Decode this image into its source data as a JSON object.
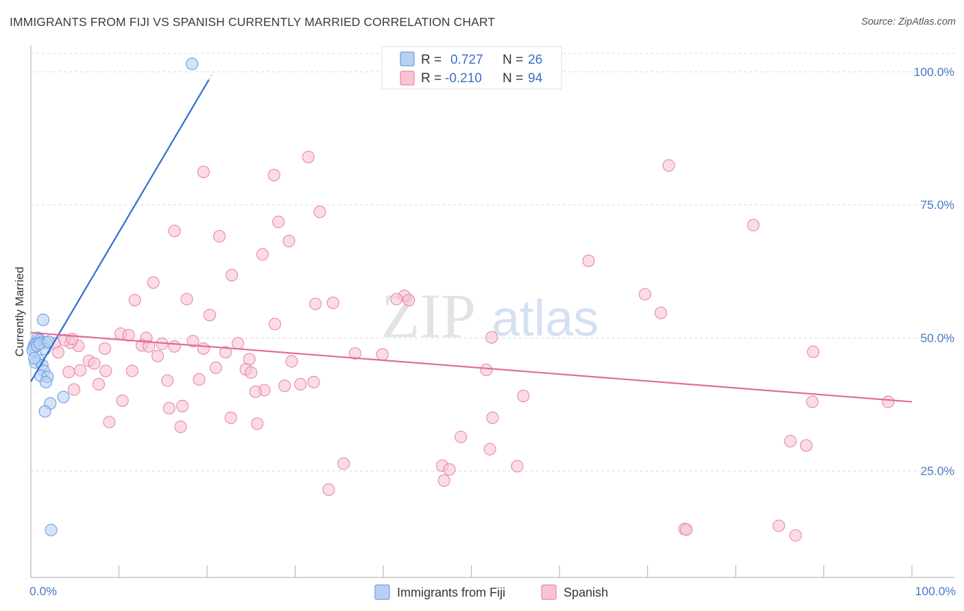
{
  "header": {
    "title": "IMMIGRANTS FROM FIJI VS SPANISH CURRENTLY MARRIED CORRELATION CHART",
    "source": "Source: ZipAtlas.com"
  },
  "watermark": {
    "zip": "ZIP",
    "atlas": "atlas"
  },
  "stats": {
    "r_label": "R =",
    "n_label": "N =",
    "rows": [
      {
        "r": "0.727",
        "n": "26"
      },
      {
        "r": "-0.210",
        "n": "94"
      }
    ]
  },
  "legend": {
    "fiji": "Immigrants from Fiji",
    "spanish": "Spanish"
  },
  "colors": {
    "fiji_fill": "#b7d0f3",
    "fiji_stroke": "#6c9ee0",
    "fiji_line": "#2c6fd0",
    "spanish_fill": "#f8c4d5",
    "spanish_stroke": "#e8889f",
    "spanish_line": "#e06c97"
  },
  "chart_data": {
    "type": "scatter",
    "title": "IMMIGRANTS FROM FIJI VS SPANISH CURRENTLY MARRIED CORRELATION CHART",
    "ylabel": "Currently Married",
    "xlabel": "",
    "xlim": [
      0,
      100
    ],
    "ylim": [
      5,
      105
    ],
    "x_tick_labels": [
      "0.0%",
      "100.0%"
    ],
    "y_ticks": [
      {
        "value": 25,
        "label": "25.0%"
      },
      {
        "value": 50,
        "label": "50.0%"
      },
      {
        "value": 75,
        "label": "75.0%"
      },
      {
        "value": 100,
        "label": "100.0%"
      }
    ],
    "grid": true,
    "series": [
      {
        "name": "Immigrants from Fiji",
        "color": "#6c9ee0",
        "trend": {
          "x0": 0,
          "y0": 41.8,
          "x1": 20.2,
          "y1": 98.5
        },
        "points": [
          [
            18.3,
            101.5
          ],
          [
            1.4,
            53.4
          ],
          [
            0.8,
            50.0
          ],
          [
            1.0,
            49.6
          ],
          [
            1.2,
            49.2
          ],
          [
            0.6,
            49.0
          ],
          [
            0.4,
            48.7
          ],
          [
            1.8,
            49.1
          ],
          [
            0.3,
            48.2
          ],
          [
            1.6,
            47.9
          ],
          [
            0.2,
            47.7
          ],
          [
            0.9,
            45.8
          ],
          [
            0.5,
            45.4
          ],
          [
            1.3,
            44.9
          ],
          [
            1.5,
            43.8
          ],
          [
            1.1,
            42.9
          ],
          [
            1.9,
            42.7
          ],
          [
            1.7,
            41.7
          ],
          [
            3.7,
            38.9
          ],
          [
            2.2,
            37.7
          ],
          [
            1.6,
            36.2
          ],
          [
            2.3,
            13.9
          ],
          [
            0.7,
            48.5
          ],
          [
            1.0,
            48.9
          ],
          [
            0.4,
            46.2
          ],
          [
            2.0,
            49.3
          ]
        ]
      },
      {
        "name": "Spanish",
        "color": "#e8889f",
        "trend": {
          "x0": 0,
          "y0": 51.0,
          "x1": 100,
          "y1": 38.0
        },
        "points": [
          [
            31.5,
            84.0
          ],
          [
            19.6,
            81.2
          ],
          [
            27.6,
            80.6
          ],
          [
            72.4,
            82.4
          ],
          [
            32.8,
            73.7
          ],
          [
            28.1,
            71.8
          ],
          [
            82.0,
            71.2
          ],
          [
            16.3,
            70.1
          ],
          [
            21.4,
            69.1
          ],
          [
            29.3,
            68.2
          ],
          [
            26.3,
            65.7
          ],
          [
            63.3,
            64.5
          ],
          [
            22.8,
            61.8
          ],
          [
            13.9,
            60.4
          ],
          [
            69.7,
            58.2
          ],
          [
            42.4,
            57.9
          ],
          [
            41.5,
            57.3
          ],
          [
            11.8,
            57.1
          ],
          [
            17.7,
            57.3
          ],
          [
            32.3,
            56.4
          ],
          [
            34.3,
            56.6
          ],
          [
            42.9,
            57.1
          ],
          [
            71.5,
            54.7
          ],
          [
            20.3,
            54.3
          ],
          [
            27.7,
            52.6
          ],
          [
            10.2,
            50.8
          ],
          [
            11.1,
            50.5
          ],
          [
            13.1,
            50.0
          ],
          [
            52.3,
            50.1
          ],
          [
            18.4,
            49.4
          ],
          [
            23.5,
            49.0
          ],
          [
            14.9,
            48.9
          ],
          [
            12.6,
            48.6
          ],
          [
            13.4,
            48.4
          ],
          [
            16.3,
            48.4
          ],
          [
            19.6,
            48.0
          ],
          [
            8.4,
            48.0
          ],
          [
            5.4,
            48.5
          ],
          [
            4.5,
            49.1
          ],
          [
            3.8,
            49.6
          ],
          [
            4.7,
            49.8
          ],
          [
            2.7,
            49.0
          ],
          [
            3.1,
            47.3
          ],
          [
            22.1,
            47.3
          ],
          [
            36.8,
            47.1
          ],
          [
            39.9,
            46.9
          ],
          [
            14.4,
            46.6
          ],
          [
            88.8,
            47.4
          ],
          [
            6.6,
            45.7
          ],
          [
            7.2,
            45.2
          ],
          [
            24.8,
            46.0
          ],
          [
            29.6,
            45.6
          ],
          [
            5.6,
            43.9
          ],
          [
            4.3,
            43.6
          ],
          [
            8.5,
            43.8
          ],
          [
            11.5,
            43.8
          ],
          [
            21.0,
            44.4
          ],
          [
            24.4,
            44.1
          ],
          [
            25.0,
            43.5
          ],
          [
            51.7,
            44.0
          ],
          [
            15.5,
            42.0
          ],
          [
            19.1,
            42.2
          ],
          [
            32.1,
            41.7
          ],
          [
            30.6,
            41.3
          ],
          [
            28.8,
            41.0
          ],
          [
            7.7,
            41.3
          ],
          [
            4.9,
            40.3
          ],
          [
            26.5,
            40.2
          ],
          [
            25.5,
            39.9
          ],
          [
            55.9,
            39.1
          ],
          [
            10.4,
            38.2
          ],
          [
            17.2,
            37.2
          ],
          [
            15.7,
            36.8
          ],
          [
            22.7,
            35.0
          ],
          [
            52.4,
            35.0
          ],
          [
            8.9,
            34.2
          ],
          [
            25.7,
            33.9
          ],
          [
            17.0,
            33.3
          ],
          [
            88.7,
            38.0
          ],
          [
            97.3,
            38.0
          ],
          [
            48.8,
            31.4
          ],
          [
            86.2,
            30.6
          ],
          [
            88.0,
            29.8
          ],
          [
            52.1,
            29.1
          ],
          [
            35.5,
            26.4
          ],
          [
            46.7,
            26.0
          ],
          [
            55.2,
            25.9
          ],
          [
            47.5,
            25.3
          ],
          [
            46.9,
            23.2
          ],
          [
            33.8,
            21.5
          ],
          [
            74.2,
            14.1
          ],
          [
            84.9,
            14.7
          ],
          [
            86.8,
            12.9
          ],
          [
            74.4,
            14.0
          ]
        ]
      }
    ]
  }
}
